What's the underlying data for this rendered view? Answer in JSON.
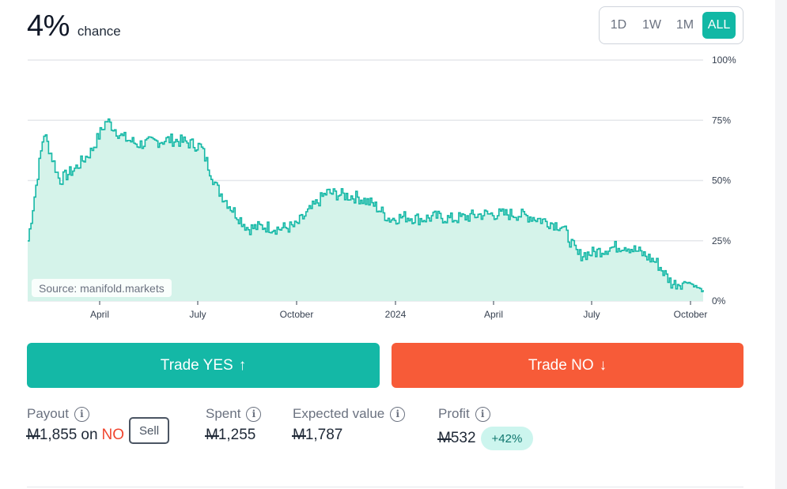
{
  "probability": {
    "value": "4%",
    "unit": "chance"
  },
  "time_range": {
    "options": [
      "1D",
      "1W",
      "1M",
      "ALL"
    ],
    "selected": "ALL"
  },
  "chart_data": {
    "type": "area",
    "x_tick_labels": [
      "April",
      "July",
      "October",
      "2024",
      "April",
      "July",
      "October"
    ],
    "y_tick_labels": [
      "100%",
      "75%",
      "50%",
      "25%",
      "0%"
    ],
    "ylim": [
      0,
      100
    ],
    "series": [
      {
        "values": [
          25,
          70,
          50,
          55,
          62,
          75,
          68,
          65,
          66,
          67,
          66,
          64,
          47,
          38,
          30,
          31,
          30,
          31,
          38,
          45,
          44,
          43,
          40,
          34,
          35,
          34,
          35,
          34,
          35,
          36,
          36,
          36,
          35,
          33,
          31,
          19,
          20,
          22,
          23,
          20,
          16,
          7,
          8,
          4
        ]
      }
    ],
    "grid": true,
    "colors": {
      "line": "#14b8a6",
      "fill": "#d5f3ea",
      "grid": "#e5e7eb"
    }
  },
  "source_label": "Source: manifold.markets",
  "actions": {
    "trade_yes": "Trade YES",
    "trade_yes_arrow": "↑",
    "trade_no": "Trade NO",
    "trade_no_arrow": "↓"
  },
  "stats": {
    "payout": {
      "label": "Payout",
      "currency": "M",
      "amount": "1,855",
      "on": "on",
      "outcome": "NO",
      "sell": "Sell"
    },
    "spent": {
      "label": "Spent",
      "currency": "M",
      "amount": "1,255"
    },
    "expected": {
      "label": "Expected value",
      "currency": "M",
      "amount": "1,787"
    },
    "profit": {
      "label": "Profit",
      "currency": "M",
      "amount": "532",
      "change": "+42%"
    }
  },
  "icons": {
    "info": "info-icon",
    "up": "arrow-up-icon",
    "down": "arrow-down-icon"
  },
  "colors": {
    "accent": "#14b8a6",
    "no": "#f75b38",
    "no_text": "#f0452f",
    "badge_bg": "#ccf5ee"
  }
}
